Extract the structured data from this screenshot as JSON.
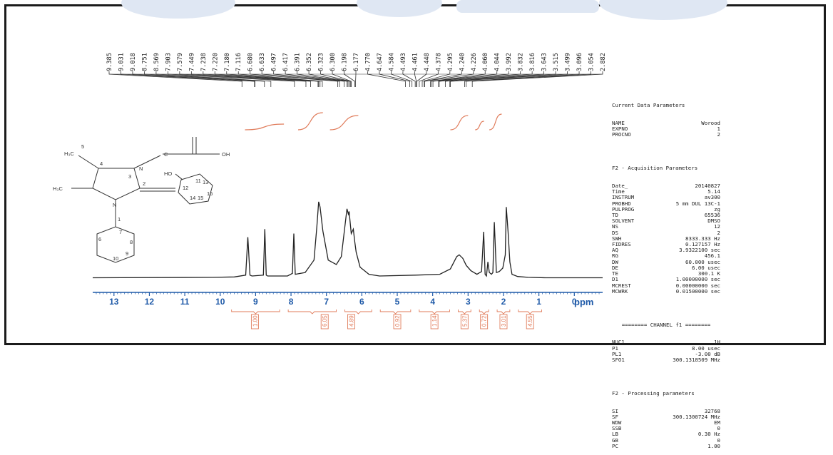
{
  "chart_data": {
    "type": "line",
    "title": "",
    "xlabel": "ppm",
    "xlim": [
      13.6,
      -0.8
    ],
    "x_ticks": [
      "13",
      "12",
      "11",
      "10",
      "9",
      "8",
      "7",
      "6",
      "5",
      "4",
      "3",
      "2",
      "1",
      "0"
    ],
    "grid": false,
    "peak_labels": [
      "9.385",
      "9.031",
      "9.018",
      "8.751",
      "8.569",
      "7.903",
      "7.579",
      "7.449",
      "7.238",
      "7.220",
      "7.180",
      "7.116",
      "6.680",
      "6.633",
      "6.497",
      "6.417",
      "6.391",
      "6.352",
      "6.323",
      "6.300",
      "6.198",
      "6.177",
      "4.770",
      "4.647",
      "4.584",
      "4.493",
      "4.461",
      "4.448",
      "4.378",
      "4.295",
      "4.240",
      "4.226",
      "4.060",
      "4.044",
      "3.992",
      "3.832",
      "3.816",
      "3.643",
      "3.515",
      "3.499",
      "3.096",
      "3.054",
      "2.882"
    ],
    "series": [
      {
        "x": [
          13.6,
          10.2,
          9.6,
          9.28,
          9.22,
          9.16,
          9.1,
          8.78,
          8.74,
          8.7,
          8.66,
          8.1,
          7.96,
          7.92,
          7.88,
          7.6,
          7.35,
          7.27,
          7.22,
          7.18,
          7.1,
          6.95,
          6.72,
          6.58,
          6.42,
          6.38,
          6.36,
          6.3,
          6.24,
          6.2,
          6.16,
          6.05,
          5.8,
          5.5,
          4.5,
          3.8,
          3.5,
          3.32,
          3.25,
          3.15,
          3.05,
          2.92,
          2.75,
          2.62,
          2.56,
          2.52,
          2.48,
          2.44,
          2.4,
          2.34,
          2.3,
          2.26,
          2.2,
          2.12,
          2.02,
          1.95,
          1.92,
          1.87,
          1.82,
          1.76,
          1.6,
          1.3,
          0.8,
          0.0,
          -0.8
        ],
        "y": [
          0.02,
          0.025,
          0.03,
          0.05,
          0.48,
          0.05,
          0.04,
          0.05,
          0.57,
          0.05,
          0.04,
          0.04,
          0.07,
          0.52,
          0.06,
          0.08,
          0.22,
          0.6,
          0.88,
          0.82,
          0.55,
          0.22,
          0.17,
          0.26,
          0.8,
          0.74,
          0.77,
          0.52,
          0.57,
          0.43,
          0.31,
          0.14,
          0.06,
          0.04,
          0.05,
          0.06,
          0.12,
          0.26,
          0.28,
          0.24,
          0.16,
          0.1,
          0.06,
          0.09,
          0.54,
          0.06,
          0.04,
          0.2,
          0.08,
          0.06,
          0.08,
          0.65,
          0.08,
          0.09,
          0.13,
          0.28,
          0.82,
          0.54,
          0.2,
          0.06,
          0.035,
          0.025,
          0.02,
          0.02,
          0.02
        ]
      }
    ],
    "integrals": [
      {
        "center": 9.02,
        "value": "1.00"
      },
      {
        "center": 7.05,
        "value": "6.05"
      },
      {
        "center": 6.3,
        "value": "4.89"
      },
      {
        "center": 5.0,
        "value": "0.92"
      },
      {
        "center": 3.95,
        "value": "1.14"
      },
      {
        "center": 3.1,
        "value": "5.37"
      },
      {
        "center": 2.55,
        "value": "0.72"
      },
      {
        "center": 2.0,
        "value": "3.01"
      },
      {
        "center": 1.25,
        "value": "4.55"
      }
    ],
    "integral_curves": [
      {
        "start": 9.3,
        "end": 8.2,
        "rise": 0.2
      },
      {
        "start": 7.8,
        "end": 7.1,
        "rise": 0.6
      },
      {
        "start": 6.9,
        "end": 6.1,
        "rise": 0.5
      },
      {
        "start": 3.5,
        "end": 3.0,
        "rise": 0.5
      },
      {
        "start": 2.8,
        "end": 2.55,
        "rise": 0.3
      },
      {
        "start": 2.4,
        "end": 2.05,
        "rise": 0.55
      }
    ],
    "colors": {
      "spectrum": "#222222",
      "axis": "#1f5aa8",
      "integral": "#e07b5a"
    }
  },
  "parameters": {
    "header": "Current Data Parameters",
    "rows1": [
      [
        "NAME",
        "Worood"
      ],
      [
        "EXPNO",
        "1"
      ],
      [
        "PROCNO",
        "2"
      ]
    ],
    "f2_acq_title": "F2 - Acquisition Parameters",
    "rows2": [
      [
        "Date_",
        "20140827"
      ],
      [
        "Time",
        "5.14"
      ],
      [
        "INSTRUM",
        "av300"
      ],
      [
        "PROBHD",
        "5 mm DUL 13C-1"
      ],
      [
        "PULPROG",
        "zg"
      ],
      [
        "TD",
        "65536"
      ],
      [
        "SOLVENT",
        "DMSO"
      ],
      [
        "NS",
        "12"
      ],
      [
        "DS",
        "2"
      ],
      [
        "SWH",
        "8333.333 Hz"
      ],
      [
        "FIDRES",
        "0.127157 Hz"
      ],
      [
        "AQ",
        "3.9322100 sec"
      ],
      [
        "RG",
        "456.1"
      ],
      [
        "DW",
        "60.000 usec"
      ],
      [
        "DE",
        "6.00 usec"
      ],
      [
        "TE",
        "300.1 K"
      ],
      [
        "D1",
        "1.00000000 sec"
      ],
      [
        "MCREST",
        "0.00000000 sec"
      ],
      [
        "MCWRK",
        "0.01500000 sec"
      ]
    ],
    "channel_title": "======== CHANNEL f1 ========",
    "rows3": [
      [
        "NUC1",
        "1H"
      ],
      [
        "P1",
        "8.00 usec"
      ],
      [
        "PL1",
        "-3.00 dB"
      ],
      [
        "SFO1",
        "300.1318509 MHz"
      ]
    ],
    "f2_proc_title": "F2 - Processing parameters",
    "rows4": [
      [
        "SI",
        "32768"
      ],
      [
        "SF",
        "300.1300724 MHz"
      ],
      [
        "WDW",
        "EM"
      ],
      [
        "SSB",
        "0"
      ],
      [
        "LB",
        "0.30 Hz"
      ],
      [
        "GB",
        "0"
      ],
      [
        "PC",
        "1.00"
      ]
    ]
  },
  "structure": {
    "label_h3c": "H₃C",
    "label_h3c2": "H₃C",
    "label_n": "N",
    "label_oh": "OH",
    "label_ho": "HO",
    "label_c": "C",
    "numbers": [
      "4",
      "5",
      "3",
      "2",
      "1",
      "6",
      "7",
      "8",
      "9",
      "10",
      "11",
      "12",
      "13",
      "14",
      "15",
      "16"
    ]
  }
}
